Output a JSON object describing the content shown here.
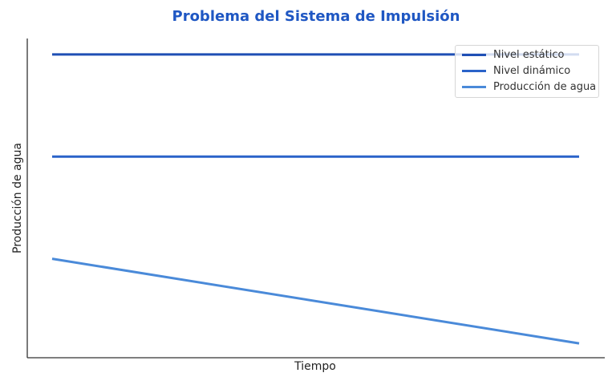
{
  "chart_data": {
    "type": "line",
    "title": "Problema del Sistema de Impulsión",
    "xlabel": "Tiempo",
    "ylabel": "Producción de agua",
    "xlim": [
      0,
      10
    ],
    "ylim": [
      0,
      100
    ],
    "grid": false,
    "ticks_visible": false,
    "legend_position": "upper right",
    "x": [
      0,
      10
    ],
    "series": [
      {
        "name": "Nivel estático",
        "values": [
          95,
          95
        ],
        "color": "#1f4fb5"
      },
      {
        "name": "Nivel dinámico",
        "values": [
          63,
          63
        ],
        "color": "#2a63c9"
      },
      {
        "name": "Producción de agua",
        "values": [
          31,
          4.5
        ],
        "color": "#4a8ad9"
      }
    ]
  },
  "legend": {
    "items": [
      {
        "label": "Nivel estático",
        "color": "#1f4fb5"
      },
      {
        "label": "Nivel dinámico",
        "color": "#2a63c9"
      },
      {
        "label": "Producción de agua",
        "color": "#4a8ad9"
      }
    ]
  },
  "colors": {
    "title": "#1f57c3",
    "axis": "#333333"
  }
}
